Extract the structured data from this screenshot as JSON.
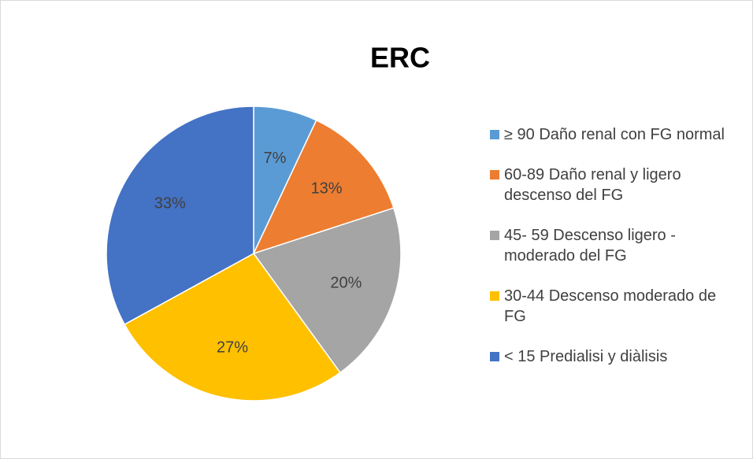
{
  "chart_data": {
    "type": "pie",
    "title": "ERC",
    "categories": [
      "≥ 90 Daño renal con FG normal",
      "60-89 Daño renal y ligero descenso del FG",
      "45- 59 Descenso ligero - moderado del FG",
      "30-44 Descenso moderado de FG",
      "< 15 Predialisi y diàlisis"
    ],
    "values": [
      7,
      13,
      20,
      27,
      33
    ],
    "value_labels": [
      "7%",
      "13%",
      "20%",
      "27%",
      "33%"
    ],
    "colors": [
      "#5b9bd5",
      "#ed7d31",
      "#a5a5a5",
      "#ffc000",
      "#4472c4"
    ],
    "legend": "right"
  }
}
